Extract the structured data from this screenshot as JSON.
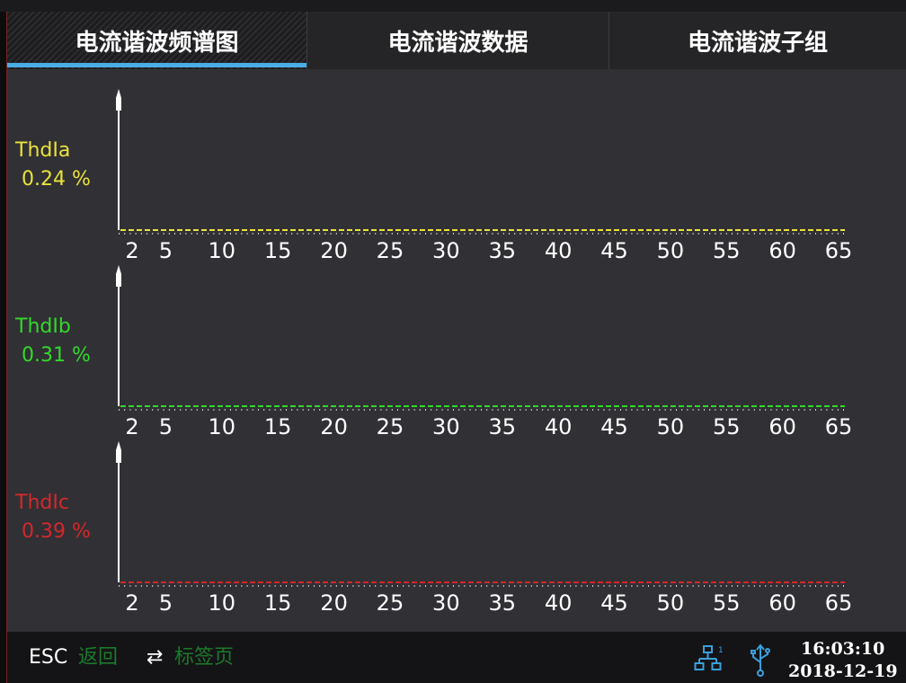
{
  "tabs": [
    {
      "label": "电流谐波频谱图",
      "active": true
    },
    {
      "label": "电流谐波数据",
      "active": false
    },
    {
      "label": "电流谐波子组",
      "active": false
    }
  ],
  "status_bar": {
    "esc_key": "ESC",
    "back_label": "返回",
    "swap_glyph": "⇄",
    "tab_label": "标签页",
    "time": "16:03:10",
    "date": "2018-12-19",
    "icons": [
      "network-icon",
      "usb-icon"
    ]
  },
  "colors": {
    "phase_a": "#e8e33a",
    "phase_b": "#33d92b",
    "phase_c": "#d3282b",
    "tab_accent": "#4aaee4",
    "hint_green": "#1c7a2a"
  },
  "chart_data": [
    {
      "type": "bar",
      "name": "ThdIa",
      "thd_value": "0.24 %",
      "x_ticks": [
        2,
        5,
        10,
        15,
        20,
        25,
        30,
        35,
        40,
        45,
        50,
        55,
        60,
        65
      ],
      "xlim": [
        1,
        65
      ],
      "values": []
    },
    {
      "type": "bar",
      "name": "ThdIb",
      "thd_value": "0.31 %",
      "x_ticks": [
        2,
        5,
        10,
        15,
        20,
        25,
        30,
        35,
        40,
        45,
        50,
        55,
        60,
        65
      ],
      "xlim": [
        1,
        65
      ],
      "values": []
    },
    {
      "type": "bar",
      "name": "ThdIc",
      "thd_value": "0.39 %",
      "x_ticks": [
        2,
        5,
        10,
        15,
        20,
        25,
        30,
        35,
        40,
        45,
        50,
        55,
        60,
        65
      ],
      "xlim": [
        1,
        65
      ],
      "values": []
    }
  ]
}
